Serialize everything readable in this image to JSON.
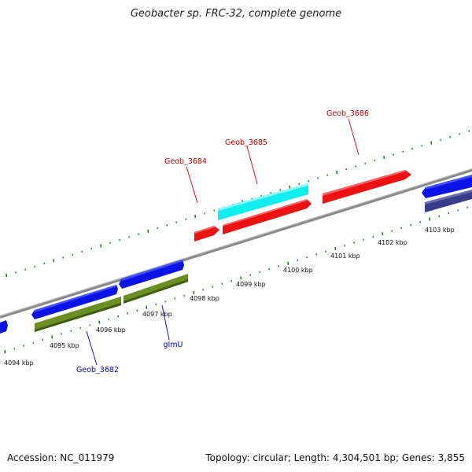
{
  "title": "Geobacter sp. FRC-32, complete genome",
  "footer": {
    "accession": "Accession: NC_011979",
    "summary": "Topology: circular; Length: 4,304,501 bp; Genes: 3,855"
  },
  "colors": {
    "backbone": "#8a8a8a",
    "tick": "#2a7a2a",
    "label_red": "#cc0000",
    "label_blue": "#0000bb",
    "gene_blue": "#0a14e6",
    "gene_green": "#6b8e23",
    "gene_red": "#ee1111",
    "gene_cyan": "#11eeee",
    "gene_navy": "#3a3a8c"
  },
  "tick_labels": [
    "4094 kbp",
    "4095 kbp",
    "4096 kbp",
    "4097 kbp",
    "4098 kbp",
    "4099 kbp",
    "4100 kbp",
    "4101 kbp",
    "4102 kbp",
    "4103 kbp"
  ],
  "gene_labels": [
    "Geob_3684",
    "Geob_3685",
    "Geob_3686",
    "Geob_3682",
    "glmU"
  ]
}
